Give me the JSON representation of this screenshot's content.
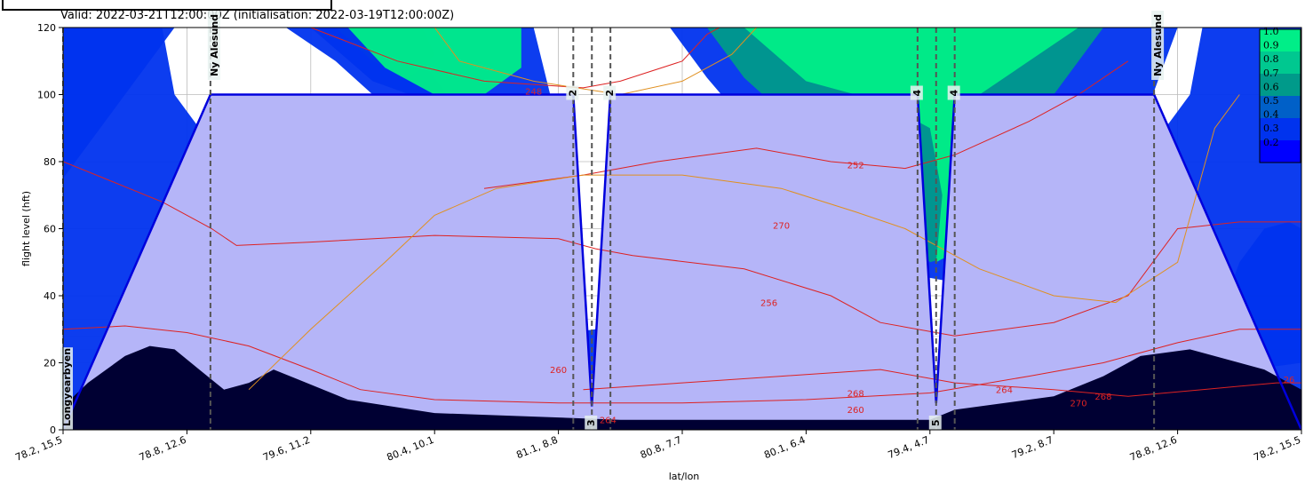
{
  "header": {
    "valid_text": "Valid: 2022-03-21T12:00:00Z (initialisation: 2022-03-19T12:00:00Z)"
  },
  "chart_data": {
    "type": "area",
    "title": "",
    "xlabel": "lat/lon",
    "ylabel": "flight level (hft)",
    "ylim": [
      0,
      120
    ],
    "yticks": [
      0,
      20,
      40,
      60,
      80,
      100,
      120
    ],
    "xtick_labels": [
      "78.2, 15.5",
      "78.8, 12.6",
      "79.6, 11.2",
      "80.4, 10.1",
      "81.1, 8.8",
      "80.8, 7.7",
      "80.1, 6.4",
      "79.4, 4.7",
      "79.2, 8.7",
      "78.8, 12.6",
      "78.2, 15.5"
    ],
    "grid": true,
    "waypoints": [
      {
        "label": "Longyearbyen",
        "pos": 0.0
      },
      {
        "label": "Ny Alesund",
        "pos": 0.119
      },
      {
        "label": "2",
        "pos": 0.412
      },
      {
        "label": "3",
        "pos": 0.427
      },
      {
        "label": "2",
        "pos": 0.442
      },
      {
        "label": "4",
        "pos": 0.69
      },
      {
        "label": "5",
        "pos": 0.705
      },
      {
        "label": "4",
        "pos": 0.72
      },
      {
        "label": "Ny Alesund",
        "pos": 0.881
      }
    ],
    "flight_path": [
      {
        "pos": 0.0,
        "level": 0
      },
      {
        "pos": 0.119,
        "level": 100
      },
      {
        "pos": 0.412,
        "level": 100
      },
      {
        "pos": 0.427,
        "level": 7
      },
      {
        "pos": 0.442,
        "level": 100
      },
      {
        "pos": 0.69,
        "level": 100
      },
      {
        "pos": 0.705,
        "level": 8
      },
      {
        "pos": 0.72,
        "level": 100
      },
      {
        "pos": 0.881,
        "level": 100
      },
      {
        "pos": 1.0,
        "level": 0
      }
    ],
    "colorbar": {
      "labels": [
        "1.0",
        "0.9",
        "0.8",
        "0.7",
        "0.6",
        "0.5",
        "0.4",
        "0.3",
        "0.2"
      ],
      "colors": [
        "#00ee88",
        "#00c890",
        "#009a8a",
        "#0060c8",
        "#0033ee",
        "#0000ff"
      ]
    },
    "contour_labels": [
      "248",
      "252",
      "256",
      "260",
      "264",
      "268",
      "270",
      "260",
      "268",
      "264",
      "270",
      "26"
    ],
    "colors": {
      "terrain": "#000033",
      "flight_fill": "#b5b5f8",
      "flight_line": "#0000dd",
      "cloud_high": "#00ee88",
      "cloud_mid": "#009a8a",
      "cloud_low": "#0033ee",
      "contour_red": "#dd2222",
      "contour_orange": "#e09020"
    }
  }
}
